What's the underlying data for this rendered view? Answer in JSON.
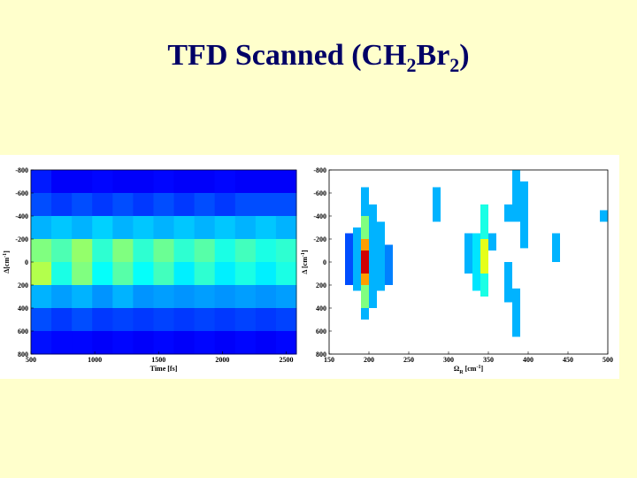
{
  "header": {
    "title": [
      "TFD Scanned (CH",
      "2",
      "Br",
      "2",
      ")"
    ]
  },
  "chart_data": [
    {
      "type": "heatmap",
      "colormap": "jet",
      "zlim": [
        0,
        1
      ],
      "xlabel": [
        "Time [fs]"
      ],
      "ylabel": [
        "Δ[cm",
        "-1",
        "]"
      ],
      "xlim": [
        500,
        2580
      ],
      "xticks": [
        500,
        1000,
        1500,
        2000,
        2500
      ],
      "ylim": [
        800,
        -800
      ],
      "yticks": [
        -800,
        -600,
        -400,
        -200,
        0,
        200,
        400,
        600,
        800
      ],
      "x": [
        500,
        660,
        820,
        980,
        1140,
        1300,
        1460,
        1620,
        1780,
        1940,
        2100,
        2260,
        2420,
        2580
      ],
      "y": [
        -800,
        -600,
        -400,
        -200,
        0,
        200,
        400,
        600,
        800
      ],
      "z": [
        [
          0.15,
          0.12,
          0.12,
          0.13,
          0.12,
          0.12,
          0.13,
          0.12,
          0.12,
          0.13,
          0.12,
          0.12,
          0.12
        ],
        [
          0.2,
          0.18,
          0.2,
          0.18,
          0.2,
          0.18,
          0.2,
          0.18,
          0.2,
          0.18,
          0.2,
          0.2,
          0.2
        ],
        [
          0.3,
          0.32,
          0.3,
          0.33,
          0.3,
          0.32,
          0.3,
          0.32,
          0.3,
          0.32,
          0.3,
          0.32,
          0.3
        ],
        [
          0.5,
          0.45,
          0.52,
          0.42,
          0.5,
          0.42,
          0.48,
          0.42,
          0.46,
          0.4,
          0.44,
          0.4,
          0.42
        ],
        [
          0.55,
          0.4,
          0.5,
          0.38,
          0.46,
          0.38,
          0.44,
          0.36,
          0.42,
          0.36,
          0.4,
          0.36,
          0.4
        ],
        [
          0.3,
          0.28,
          0.3,
          0.27,
          0.3,
          0.27,
          0.28,
          0.27,
          0.28,
          0.27,
          0.28,
          0.27,
          0.28
        ],
        [
          0.2,
          0.18,
          0.2,
          0.18,
          0.19,
          0.18,
          0.19,
          0.18,
          0.19,
          0.18,
          0.19,
          0.18,
          0.19
        ],
        [
          0.14,
          0.13,
          0.13,
          0.12,
          0.13,
          0.12,
          0.13,
          0.12,
          0.13,
          0.12,
          0.13,
          0.12,
          0.13
        ]
      ]
    },
    {
      "type": "cells",
      "colormap": "jet",
      "zlim": [
        0,
        1
      ],
      "xlabel": [
        "Ω",
        "R",
        " [cm",
        "-1",
        "]"
      ],
      "ylabel": [
        "Δ",
        " [cm",
        "-1",
        "]"
      ],
      "xlim": [
        150,
        500
      ],
      "xticks": [
        150,
        200,
        250,
        300,
        350,
        400,
        450,
        500
      ],
      "ylim": [
        800,
        -800
      ],
      "yticks": [
        -800,
        -600,
        -400,
        -200,
        0,
        200,
        400,
        600,
        800
      ],
      "cells": [
        [
          170,
          180,
          -250,
          200,
          0.2
        ],
        [
          180,
          190,
          -300,
          250,
          0.3
        ],
        [
          190,
          200,
          -650,
          -400,
          0.3
        ],
        [
          190,
          200,
          -400,
          -200,
          0.5
        ],
        [
          190,
          200,
          -200,
          -100,
          0.72
        ],
        [
          190,
          200,
          -100,
          100,
          0.92
        ],
        [
          190,
          200,
          100,
          200,
          0.72
        ],
        [
          190,
          200,
          200,
          400,
          0.5
        ],
        [
          190,
          200,
          400,
          500,
          0.3
        ],
        [
          200,
          210,
          -500,
          400,
          0.3
        ],
        [
          210,
          220,
          -350,
          250,
          0.3
        ],
        [
          220,
          230,
          -150,
          200,
          0.25
        ],
        [
          280,
          290,
          -650,
          -350,
          0.3
        ],
        [
          320,
          330,
          -250,
          100,
          0.3
        ],
        [
          330,
          340,
          -250,
          250,
          0.35
        ],
        [
          340,
          350,
          -500,
          -200,
          0.4
        ],
        [
          340,
          350,
          -200,
          100,
          0.6
        ],
        [
          340,
          350,
          100,
          300,
          0.4
        ],
        [
          350,
          360,
          -250,
          -100,
          0.3
        ],
        [
          370,
          380,
          -500,
          -350,
          0.3
        ],
        [
          370,
          380,
          0,
          350,
          0.3
        ],
        [
          380,
          390,
          -800,
          -350,
          0.3
        ],
        [
          380,
          390,
          230,
          650,
          0.3
        ],
        [
          390,
          400,
          -700,
          -120,
          0.3
        ],
        [
          430,
          440,
          -250,
          0,
          0.3
        ],
        [
          490,
          500,
          -450,
          -350,
          0.3
        ]
      ]
    }
  ]
}
